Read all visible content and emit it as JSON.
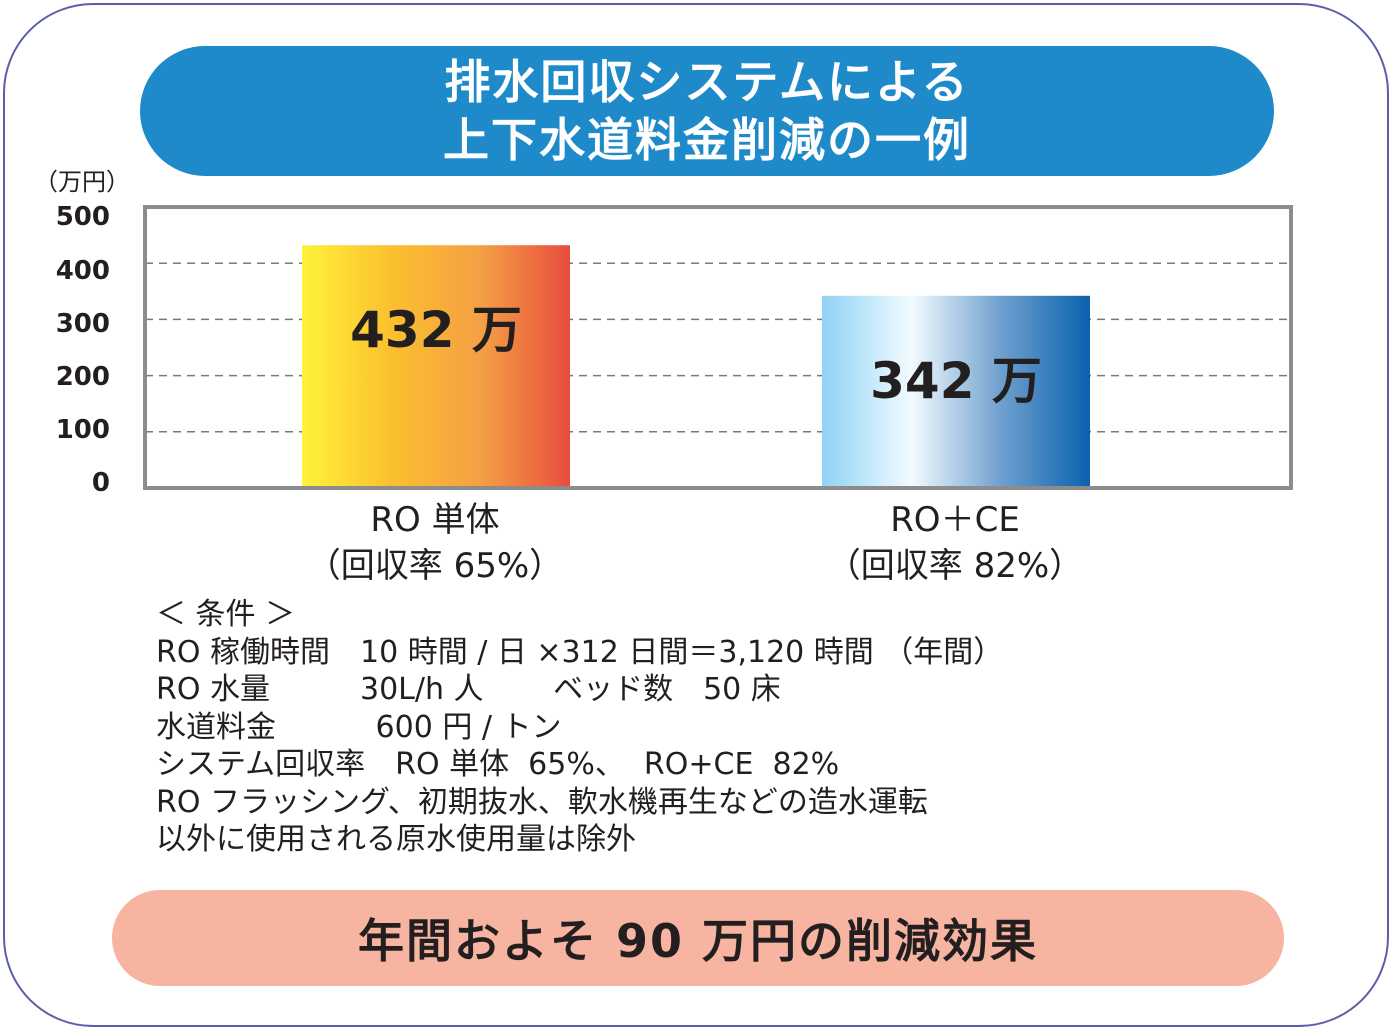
{
  "title": {
    "line1": "排水回収システムによる",
    "line2": "上下水道料金削減の一例"
  },
  "chart_data": {
    "type": "bar",
    "unit_label": "（万円）",
    "categories": [
      "RO 単体",
      "RO＋CE"
    ],
    "category_sublabels": [
      "（回収率 65%）",
      "（回収率 82%）"
    ],
    "values": [
      432,
      342
    ],
    "data_labels": [
      "432 万",
      "342 万"
    ],
    "ylim": [
      0,
      500
    ],
    "yticks": [
      "0",
      "100",
      "200",
      "300",
      "400",
      "500"
    ],
    "grid": true,
    "bar_colors": [
      [
        "#fff23a",
        "#fbc02f",
        "#f4a044",
        "#e84c3d"
      ],
      [
        "#8fd3f4",
        "#f2fbff",
        "#6fa0cf",
        "#0a62ad"
      ]
    ]
  },
  "conditions": {
    "heading": "＜ 条件 ＞",
    "lines": [
      "RO 稼働時間　10 時間 / 日 ×312 日間＝3,120 時間 （年間）",
      "RO 水量　　　30L/h 人　　 ベッド数　50 床",
      "水道料金　　　 600 円 / トン",
      "システム回収率　RO 単体  65%、  RO+CE  82%",
      "RO フラッシング、初期抜水、軟水機再生などの造水運転",
      "以外に使用される原水使用量は除外"
    ]
  },
  "summary": "年間およそ 90 万円の削減効果",
  "colors": {
    "title_bg": "#1e8ac9",
    "summary_bg": "#f7b4a0",
    "frame_border": "#5b5fa8",
    "axis_frame": "#8c8c8c"
  }
}
